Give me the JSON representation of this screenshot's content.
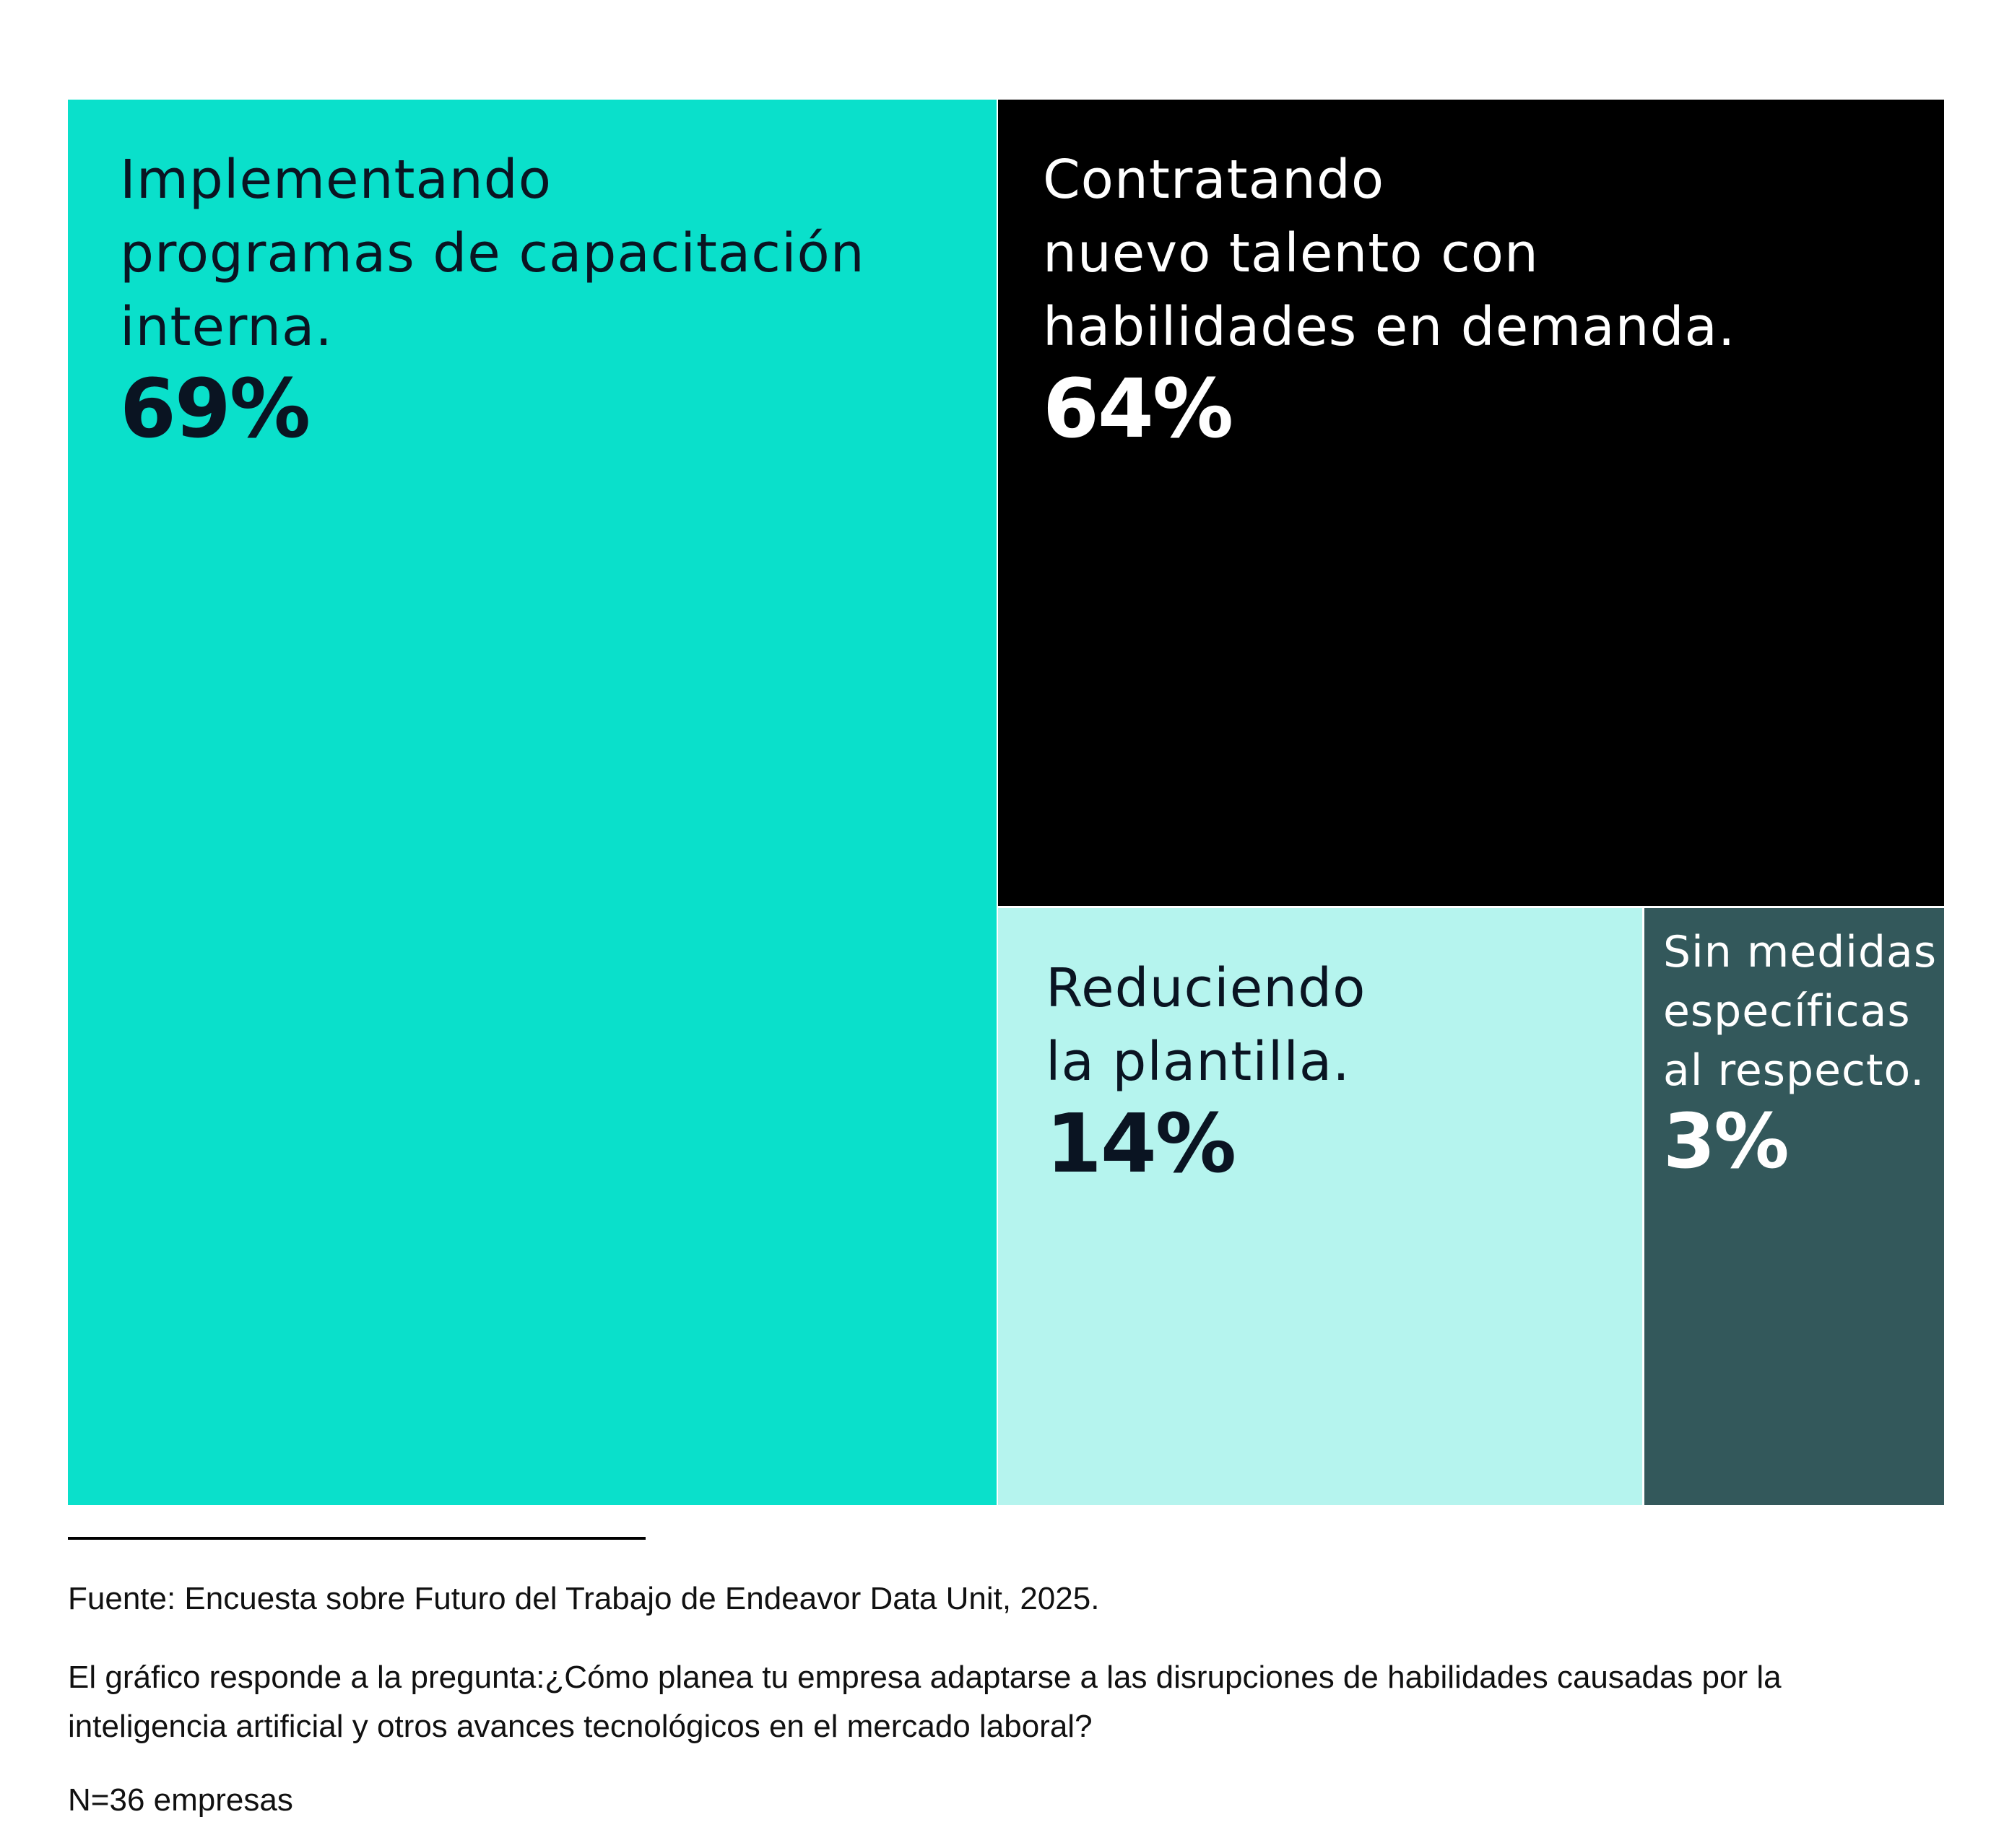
{
  "chart_data": {
    "type": "treemap",
    "title": "",
    "unit": "%",
    "items": [
      {
        "label": "Implementando\nprogramas de capacitación\ninterna.",
        "value": 69,
        "value_label": "69%",
        "color": "#0ae0cb",
        "text_color": "#0a1422"
      },
      {
        "label": "Contratando\nnuevo talento con\nhabilidades en demanda.",
        "value": 64,
        "value_label": "64%",
        "color": "#000000",
        "text_color": "#ffffff"
      },
      {
        "label": "Reduciendo\nla plantilla.",
        "value": 14,
        "value_label": "14%",
        "color": "#b5f4ee",
        "text_color": "#0a1422"
      },
      {
        "label": "Sin medidas\nespecíficas\nal respecto.",
        "value": 3,
        "value_label": "3%",
        "color": "#33585b",
        "text_color": "#ffffff"
      }
    ]
  },
  "footer": {
    "source": "Fuente: Encuesta sobre Futuro del Trabajo de Endeavor Data Unit, 2025.",
    "question": "El gráfico responde a la pregunta:¿Cómo planea tu empresa adaptarse a las disrupciones de habilidades causadas por la inteligencia artificial y otros avances tecnológicos en el mercado laboral?",
    "sample": "N=36 empresas"
  }
}
